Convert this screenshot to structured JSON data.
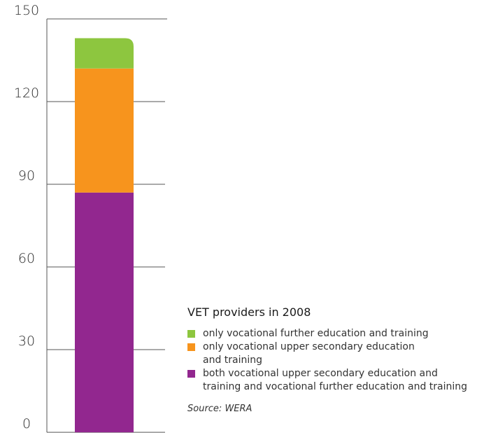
{
  "chart_data": {
    "type": "bar",
    "stacked": true,
    "categories": [
      ""
    ],
    "series": [
      {
        "name": "both vocational upper secondary education and\ntraining and vocational further education and training",
        "values": [
          87
        ],
        "color": "#92278f"
      },
      {
        "name": "only vocational upper secondary education\nand training",
        "values": [
          45
        ],
        "color": "#f7941d"
      },
      {
        "name": "only vocational further education and training",
        "values": [
          11
        ],
        "color": "#8dc63f"
      }
    ],
    "ylim": [
      0,
      150
    ],
    "yticks": [
      "0",
      "30",
      "60",
      "90",
      "120",
      "150"
    ],
    "title": "VET providers in 2008",
    "xlabel": "",
    "ylabel": "",
    "grid": true,
    "legend_placement": "bottom-right",
    "source": "Source: WERA"
  },
  "legend_order": [
    2,
    1,
    0
  ]
}
